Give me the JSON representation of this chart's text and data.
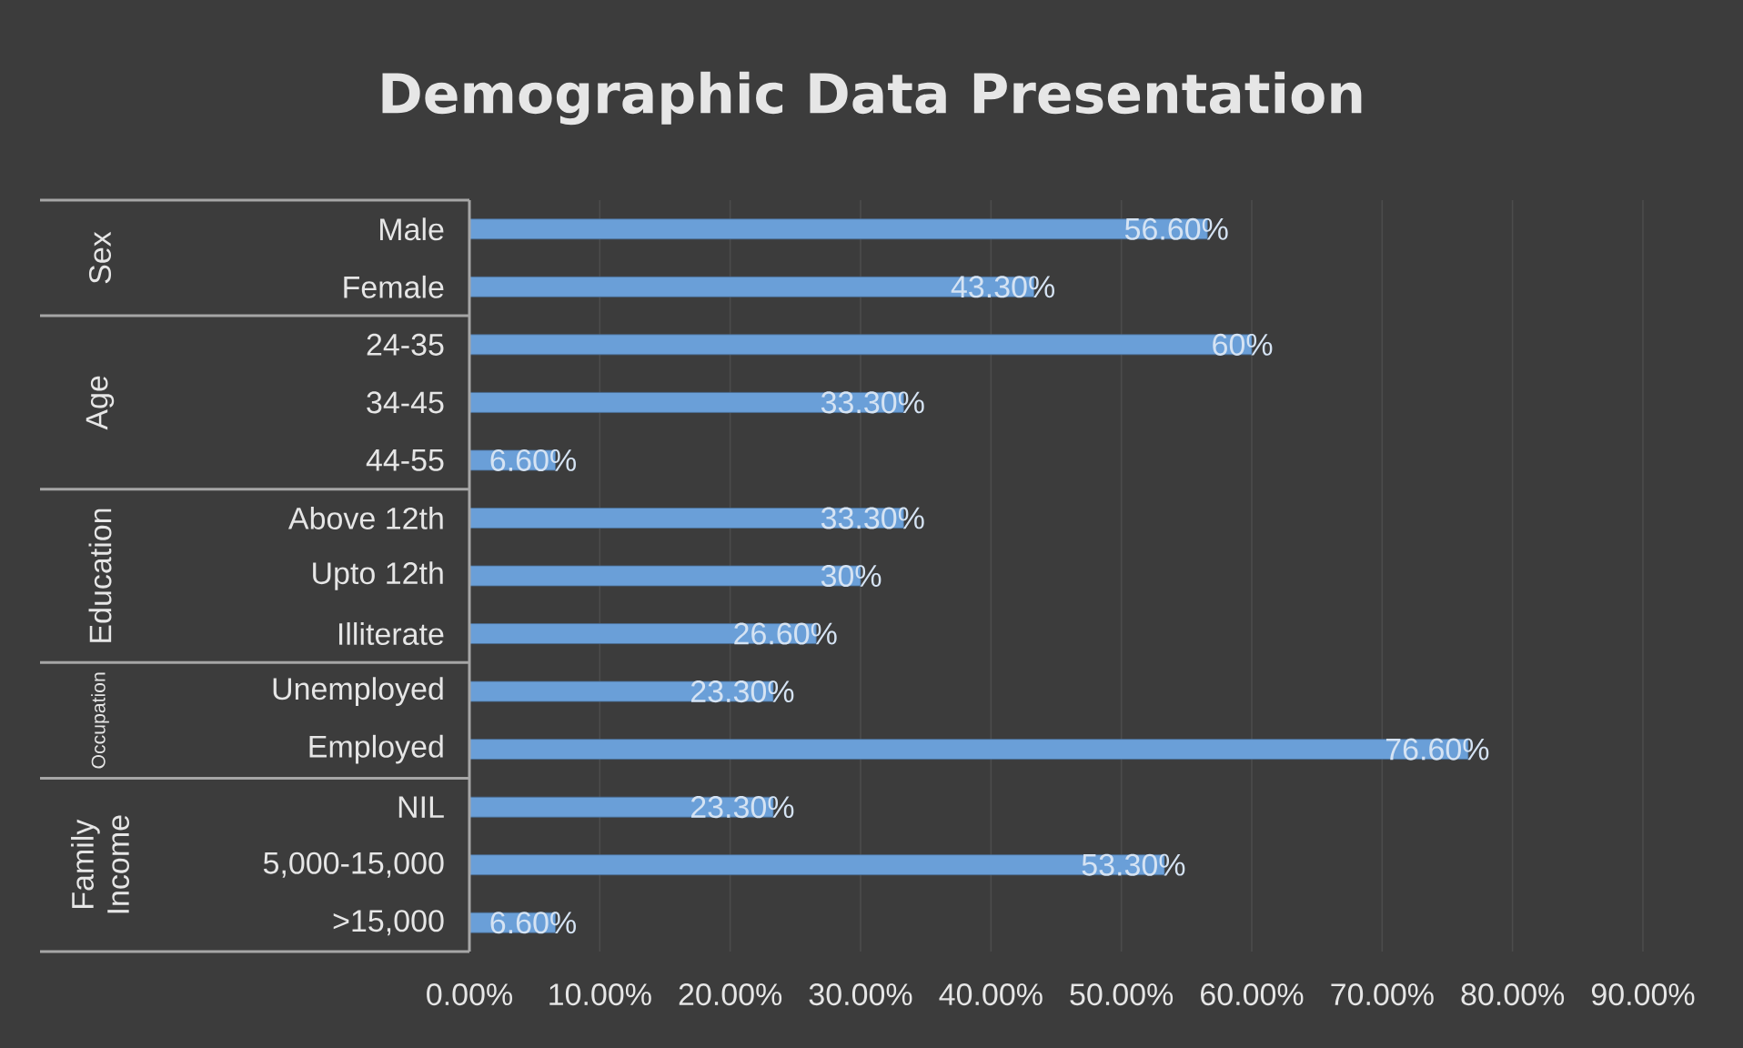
{
  "chart_data": {
    "type": "bar",
    "orientation": "horizontal",
    "title": "Demographic Data Presentation",
    "categories": [
      "Male",
      "Female",
      "24-35",
      "34-45",
      "44-55",
      "Above 12th",
      "Upto 12th",
      "Illiterate",
      "Unemployed",
      "Employed",
      "NIL",
      "5,000-15,000",
      ">15,000"
    ],
    "values": [
      56.6,
      43.3,
      60,
      33.3,
      6.6,
      33.3,
      30,
      26.6,
      23.3,
      76.6,
      23.3,
      53.3,
      6.6
    ],
    "value_labels": [
      "56.60%",
      "43.30%",
      "60%",
      "33.30%",
      "6.60%",
      "33.30%",
      "30%",
      "26.60%",
      "23.30%",
      "76.60%",
      "23.30%",
      "53.30%",
      "6.60%"
    ],
    "color": "#6a9fd8",
    "xlim": [
      0,
      90
    ],
    "xticks": [
      {
        "value": 0,
        "label": "0.00%"
      },
      {
        "value": 10,
        "label": "10.00%"
      },
      {
        "value": 20,
        "label": "20.00%"
      },
      {
        "value": 30,
        "label": "30.00%"
      },
      {
        "value": 40,
        "label": "40.00%"
      },
      {
        "value": 50,
        "label": "50.00%"
      },
      {
        "value": 60,
        "label": "60.00%"
      },
      {
        "value": 70,
        "label": "70.00%"
      },
      {
        "value": 80,
        "label": "80.00%"
      },
      {
        "value": 90,
        "label": "90.00%"
      }
    ],
    "grid": "x",
    "annotations": [
      "Sex",
      "Age",
      "Education",
      "Occupation",
      "Family Income"
    ]
  }
}
